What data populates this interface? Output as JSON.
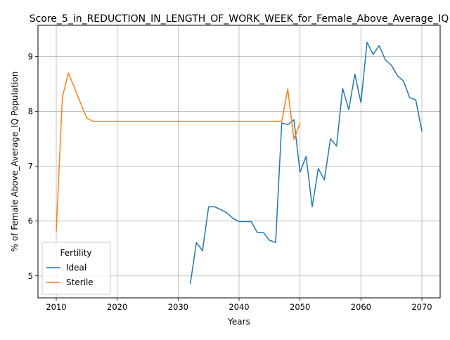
{
  "chart_data": {
    "type": "line",
    "title": "Score_5_in_REDUCTION_IN_LENGTH_OF_WORK_WEEK_for_Female_Above_Average_IQ",
    "xlabel": "Years",
    "ylabel": "% of Female Above_Average_IQ Population",
    "xlim": [
      2007,
      2073
    ],
    "ylim": [
      4.6,
      9.57
    ],
    "xticks": [
      2010,
      2020,
      2030,
      2040,
      2050,
      2060,
      2070
    ],
    "yticks": [
      5,
      6,
      7,
      8,
      9
    ],
    "grid": true,
    "legend": {
      "title": "Fertility",
      "placement": "lower-left"
    },
    "series": [
      {
        "name": "Ideal",
        "color": "#1f77b4",
        "x": [
          2032,
          2033,
          2034,
          2035,
          2036,
          2037,
          2038,
          2039,
          2040,
          2041,
          2042,
          2043,
          2044,
          2045,
          2046,
          2047,
          2048,
          2049,
          2050,
          2051,
          2052,
          2053,
          2054,
          2055,
          2056,
          2057,
          2058,
          2059,
          2060,
          2061,
          2062,
          2063,
          2064,
          2065,
          2066,
          2067,
          2068,
          2069,
          2070
        ],
        "y": [
          4.86,
          5.61,
          5.46,
          6.26,
          6.26,
          6.21,
          6.15,
          6.05,
          5.99,
          5.99,
          5.99,
          5.79,
          5.79,
          5.65,
          5.61,
          7.79,
          7.76,
          7.85,
          6.89,
          7.18,
          6.26,
          6.96,
          6.75,
          7.5,
          7.37,
          8.42,
          8.03,
          8.68,
          8.16,
          9.26,
          9.04,
          9.2,
          8.94,
          8.84,
          8.65,
          8.55,
          8.25,
          8.21,
          7.64
        ]
      },
      {
        "name": "Sterile",
        "color": "#ff7f0e",
        "x": [
          2010,
          2011,
          2012,
          2013,
          2014,
          2015,
          2016,
          2017,
          2018,
          2019,
          2020,
          2021,
          2022,
          2023,
          2024,
          2025,
          2026,
          2027,
          2028,
          2029,
          2030,
          2031,
          2032,
          2033,
          2034,
          2035,
          2036,
          2037,
          2038,
          2039,
          2040,
          2041,
          2042,
          2043,
          2044,
          2045,
          2046,
          2047,
          2048,
          2049,
          2050
        ],
        "y": [
          5.82,
          8.26,
          8.7,
          8.43,
          8.15,
          7.88,
          7.82,
          7.82,
          7.82,
          7.82,
          7.82,
          7.82,
          7.82,
          7.82,
          7.82,
          7.82,
          7.82,
          7.82,
          7.82,
          7.82,
          7.82,
          7.82,
          7.82,
          7.82,
          7.82,
          7.82,
          7.82,
          7.82,
          7.82,
          7.82,
          7.82,
          7.82,
          7.82,
          7.82,
          7.82,
          7.82,
          7.82,
          7.82,
          8.41,
          7.49,
          7.78
        ]
      }
    ]
  }
}
